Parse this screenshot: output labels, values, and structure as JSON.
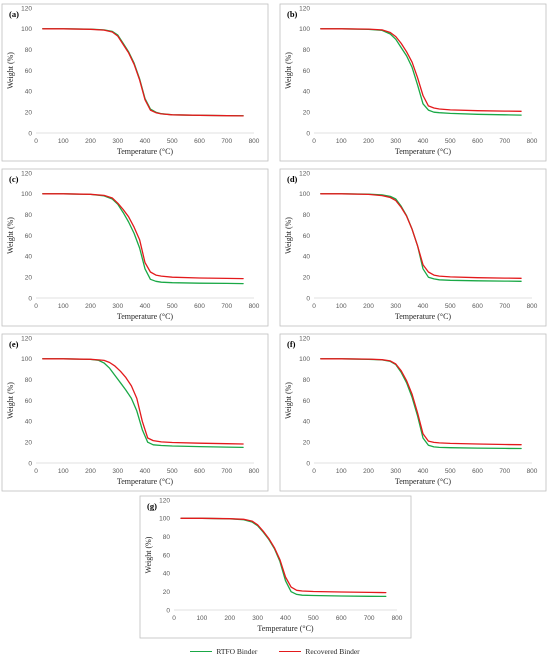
{
  "legend": {
    "items": [
      {
        "label": "RTFO Binder",
        "color": "#1aa846"
      },
      {
        "label": "Recovered Binder",
        "color": "#e31a1c"
      }
    ]
  },
  "chart_data": [
    {
      "type": "line",
      "panel_label": "(a)",
      "xlabel": "Temperature (°C)",
      "ylabel": "Weight (%)",
      "xlim": [
        0,
        800
      ],
      "ylim": [
        0,
        120
      ],
      "xticks": [
        0,
        100,
        200,
        300,
        400,
        500,
        600,
        700,
        800
      ],
      "yticks": [
        0,
        20,
        40,
        60,
        80,
        100,
        120
      ],
      "series": [
        {
          "name": "RTFO Binder",
          "color": "#1aa846",
          "x": [
            25,
            100,
            200,
            250,
            280,
            300,
            320,
            340,
            360,
            380,
            400,
            420,
            440,
            460,
            500,
            600,
            700,
            760
          ],
          "y": [
            100,
            100,
            99.7,
            99,
            97.5,
            94,
            86,
            78,
            67,
            52,
            33,
            23,
            20,
            18.5,
            17.5,
            17,
            16.7,
            16.5
          ]
        },
        {
          "name": "Recovered Binder",
          "color": "#e31a1c",
          "x": [
            25,
            100,
            200,
            250,
            280,
            300,
            320,
            340,
            360,
            380,
            400,
            420,
            440,
            460,
            500,
            600,
            700,
            760
          ],
          "y": [
            100,
            100,
            99.6,
            98.8,
            97,
            93,
            85,
            77,
            66,
            51,
            32,
            22,
            19.5,
            18.3,
            17.5,
            17,
            16.6,
            16.4
          ]
        }
      ]
    },
    {
      "type": "line",
      "panel_label": "(b)",
      "xlabel": "Temperature (°C)",
      "ylabel": "Weight (%)",
      "xlim": [
        0,
        800
      ],
      "ylim": [
        0,
        120
      ],
      "xticks": [
        0,
        100,
        200,
        300,
        400,
        500,
        600,
        700,
        800
      ],
      "yticks": [
        0,
        20,
        40,
        60,
        80,
        100,
        120
      ],
      "series": [
        {
          "name": "RTFO Binder",
          "color": "#1aa846",
          "x": [
            25,
            100,
            200,
            250,
            280,
            300,
            320,
            340,
            360,
            380,
            400,
            420,
            440,
            460,
            500,
            600,
            700,
            760
          ],
          "y": [
            100,
            100,
            99.5,
            98.5,
            95,
            90,
            82,
            74,
            63,
            46,
            28,
            22,
            20,
            19.5,
            18.8,
            18,
            17.5,
            17.2
          ]
        },
        {
          "name": "Recovered Binder",
          "color": "#e31a1c",
          "x": [
            25,
            100,
            200,
            250,
            280,
            300,
            320,
            340,
            360,
            380,
            400,
            420,
            440,
            460,
            500,
            600,
            700,
            760
          ],
          "y": [
            100,
            100,
            99.7,
            99,
            96.5,
            92.5,
            86,
            78,
            68,
            53,
            36,
            26,
            24,
            23,
            22.2,
            21.4,
            21,
            20.8
          ]
        }
      ]
    },
    {
      "type": "line",
      "panel_label": "(c)",
      "xlabel": "Temperature (°C)",
      "ylabel": "Weight (%)",
      "xlim": [
        0,
        800
      ],
      "ylim": [
        0,
        120
      ],
      "xticks": [
        0,
        100,
        200,
        300,
        400,
        500,
        600,
        700,
        800
      ],
      "yticks": [
        0,
        20,
        40,
        60,
        80,
        100,
        120
      ],
      "series": [
        {
          "name": "RTFO Binder",
          "color": "#1aa846",
          "x": [
            25,
            100,
            200,
            250,
            280,
            300,
            320,
            340,
            360,
            380,
            400,
            420,
            440,
            460,
            500,
            600,
            700,
            760
          ],
          "y": [
            100,
            100,
            99.5,
            98,
            95,
            90,
            82,
            73,
            62,
            48,
            28,
            18,
            16,
            15.2,
            14.7,
            14.2,
            14,
            13.8
          ]
        },
        {
          "name": "Recovered Binder",
          "color": "#e31a1c",
          "x": [
            25,
            100,
            200,
            250,
            280,
            300,
            320,
            340,
            360,
            380,
            400,
            420,
            440,
            460,
            500,
            600,
            700,
            760
          ],
          "y": [
            100,
            100,
            99.6,
            98.5,
            96,
            91,
            85,
            78,
            68,
            56,
            34,
            25,
            22,
            21,
            20,
            19.2,
            18.8,
            18.6
          ]
        }
      ]
    },
    {
      "type": "line",
      "panel_label": "(d)",
      "xlabel": "Temperature (°C)",
      "ylabel": "Weight (%)",
      "xlim": [
        0,
        800
      ],
      "ylim": [
        0,
        120
      ],
      "xticks": [
        0,
        100,
        200,
        300,
        400,
        500,
        600,
        700,
        800
      ],
      "yticks": [
        0,
        20,
        40,
        60,
        80,
        100,
        120
      ],
      "series": [
        {
          "name": "RTFO Binder",
          "color": "#1aa846",
          "x": [
            25,
            100,
            200,
            250,
            280,
            300,
            320,
            340,
            360,
            380,
            400,
            420,
            440,
            460,
            500,
            600,
            700,
            760
          ],
          "y": [
            100,
            100,
            99.7,
            99,
            97.5,
            95,
            88,
            79,
            66,
            50,
            28,
            20,
            18.3,
            17.5,
            17,
            16.5,
            16.2,
            16
          ]
        },
        {
          "name": "Recovered Binder",
          "color": "#e31a1c",
          "x": [
            25,
            100,
            200,
            250,
            280,
            300,
            320,
            340,
            360,
            380,
            400,
            420,
            440,
            460,
            500,
            600,
            700,
            760
          ],
          "y": [
            100,
            100,
            99.5,
            98.3,
            96.5,
            93.5,
            87,
            78.5,
            66,
            50,
            32,
            25,
            22,
            21,
            20.3,
            19.5,
            19.1,
            18.9
          ]
        }
      ]
    },
    {
      "type": "line",
      "panel_label": "(e)",
      "xlabel": "Temperature (°C)",
      "ylabel": "Weight (%)",
      "xlim": [
        0,
        800
      ],
      "ylim": [
        0,
        120
      ],
      "xticks": [
        0,
        100,
        200,
        300,
        400,
        500,
        600,
        700,
        800
      ],
      "yticks": [
        0,
        20,
        40,
        60,
        80,
        100,
        120
      ],
      "series": [
        {
          "name": "RTFO Binder",
          "color": "#1aa846",
          "x": [
            25,
            100,
            200,
            230,
            250,
            270,
            290,
            310,
            330,
            350,
            370,
            390,
            410,
            430,
            460,
            500,
            600,
            700,
            760
          ],
          "y": [
            100,
            100,
            99.5,
            98.5,
            96,
            91,
            84,
            77,
            70,
            62,
            50,
            32,
            20,
            17.5,
            16.8,
            16.3,
            15.7,
            15.3,
            15
          ]
        },
        {
          "name": "Recovered Binder",
          "color": "#e31a1c",
          "x": [
            25,
            100,
            200,
            230,
            250,
            270,
            290,
            310,
            330,
            350,
            370,
            390,
            410,
            430,
            460,
            500,
            600,
            700,
            760
          ],
          "y": [
            100,
            100,
            99.6,
            99,
            98.5,
            96.5,
            93,
            88,
            82,
            74,
            62,
            40,
            24,
            21.5,
            20.3,
            19.7,
            19,
            18.5,
            18.2
          ]
        }
      ]
    },
    {
      "type": "line",
      "panel_label": "(f)",
      "xlabel": "Temperature (°C)",
      "ylabel": "Weight (%)",
      "xlim": [
        0,
        800
      ],
      "ylim": [
        0,
        120
      ],
      "xticks": [
        0,
        100,
        200,
        300,
        400,
        500,
        600,
        700,
        800
      ],
      "yticks": [
        0,
        20,
        40,
        60,
        80,
        100,
        120
      ],
      "series": [
        {
          "name": "RTFO Binder",
          "color": "#1aa846",
          "x": [
            25,
            100,
            200,
            250,
            280,
            300,
            320,
            340,
            360,
            380,
            400,
            420,
            440,
            460,
            500,
            600,
            700,
            760
          ],
          "y": [
            100,
            100,
            99.6,
            99,
            97.5,
            94.5,
            87,
            77,
            63,
            45,
            24,
            17,
            15.5,
            15,
            14.7,
            14.3,
            14,
            13.9
          ]
        },
        {
          "name": "Recovered Binder",
          "color": "#e31a1c",
          "x": [
            25,
            100,
            200,
            250,
            280,
            300,
            320,
            340,
            360,
            380,
            400,
            420,
            440,
            460,
            500,
            600,
            700,
            760
          ],
          "y": [
            100,
            100,
            99.7,
            99.2,
            98,
            95,
            88.5,
            79,
            66,
            48,
            28,
            21,
            19.8,
            19.3,
            18.8,
            18.2,
            17.8,
            17.6
          ]
        }
      ]
    },
    {
      "type": "line",
      "panel_label": "(g)",
      "xlabel": "Temperature (°C)",
      "ylabel": "Weight (%)",
      "xlim": [
        0,
        800
      ],
      "ylim": [
        0,
        120
      ],
      "xticks": [
        0,
        100,
        200,
        300,
        400,
        500,
        600,
        700,
        800
      ],
      "yticks": [
        0,
        20,
        40,
        60,
        80,
        100,
        120
      ],
      "series": [
        {
          "name": "RTFO Binder",
          "color": "#1aa846",
          "x": [
            25,
            100,
            200,
            250,
            280,
            300,
            320,
            340,
            360,
            380,
            400,
            420,
            440,
            460,
            500,
            600,
            700,
            760
          ],
          "y": [
            100,
            100,
            99.5,
            98.5,
            96,
            92,
            85,
            77,
            67,
            53,
            32,
            20,
            17,
            16.2,
            15.8,
            15.3,
            15,
            14.8
          ]
        },
        {
          "name": "Recovered Binder",
          "color": "#e31a1c",
          "x": [
            25,
            100,
            200,
            250,
            280,
            300,
            320,
            340,
            360,
            380,
            400,
            420,
            440,
            460,
            500,
            600,
            700,
            760
          ],
          "y": [
            100,
            100,
            99.6,
            99,
            97,
            93,
            86,
            78,
            68,
            55,
            36,
            25,
            21.5,
            20.7,
            20.2,
            19.6,
            19.2,
            19
          ]
        }
      ]
    }
  ]
}
